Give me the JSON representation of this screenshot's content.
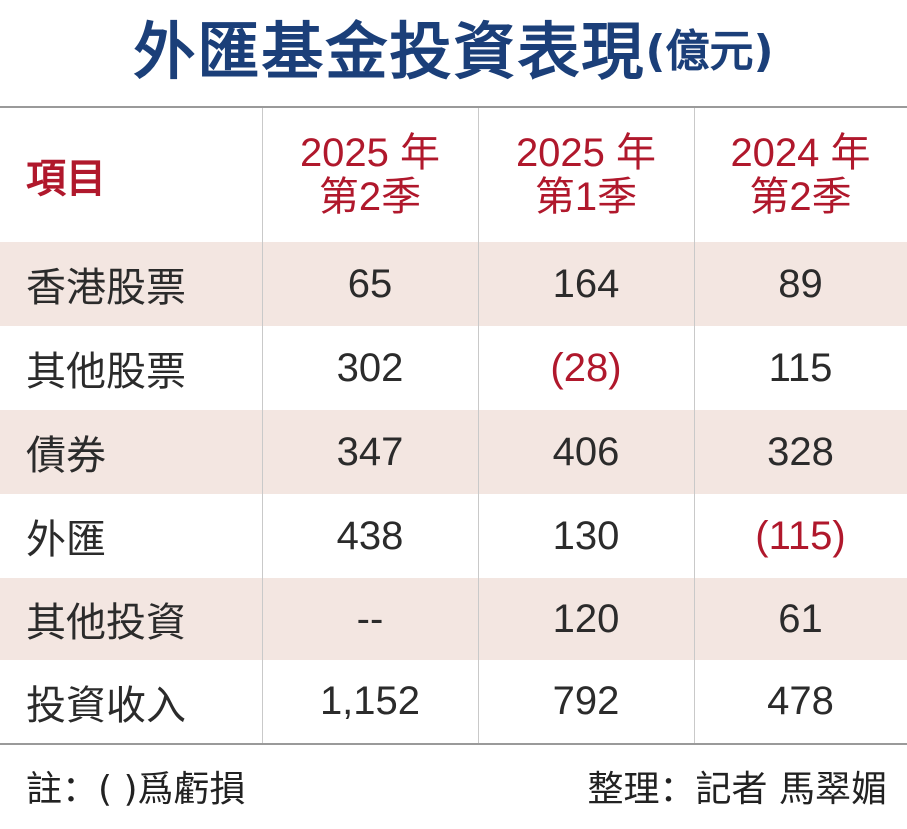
{
  "title": "外匯基金投資表現",
  "unit": "(億元)",
  "header": {
    "item_label": "項目",
    "columns": [
      {
        "line1": "2025 年",
        "line2": "第2季"
      },
      {
        "line1": "2025 年",
        "line2": "第1季"
      },
      {
        "line1": "2024 年",
        "line2": "第2季"
      }
    ]
  },
  "rows": [
    {
      "label": "香港股票",
      "values": [
        "65",
        "164",
        "89"
      ]
    },
    {
      "label": "其他股票",
      "values": [
        "302",
        "(28)",
        "115"
      ]
    },
    {
      "label": "債券",
      "values": [
        "347",
        "406",
        "328"
      ]
    },
    {
      "label": "外匯",
      "values": [
        "438",
        "130",
        "(115)"
      ]
    },
    {
      "label": "其他投資",
      "values": [
        "--",
        "120",
        "61"
      ]
    },
    {
      "label": "投資收入",
      "values": [
        "1,152",
        "792",
        "478"
      ]
    }
  ],
  "footer": {
    "note": "註：( )爲虧損",
    "credit": "整理：記者 馬翠媚"
  },
  "colors": {
    "title": "#1b3f79",
    "header_text": "#b0182c",
    "negative": "#b0182c",
    "row_shade": "#f3e6e1"
  },
  "chart_data": {
    "type": "table",
    "title": "外匯基金投資表現",
    "unit": "億元",
    "columns": [
      "2025 年第2季",
      "2025 年第1季",
      "2024 年第2季"
    ],
    "rows": [
      {
        "item": "香港股票",
        "values": [
          65,
          164,
          89
        ]
      },
      {
        "item": "其他股票",
        "values": [
          302,
          -28,
          115
        ]
      },
      {
        "item": "債券",
        "values": [
          347,
          406,
          328
        ]
      },
      {
        "item": "外匯",
        "values": [
          438,
          130,
          -115
        ]
      },
      {
        "item": "其他投資",
        "values": [
          null,
          120,
          61
        ]
      },
      {
        "item": "投資收入",
        "values": [
          1152,
          792,
          478
        ]
      }
    ]
  }
}
